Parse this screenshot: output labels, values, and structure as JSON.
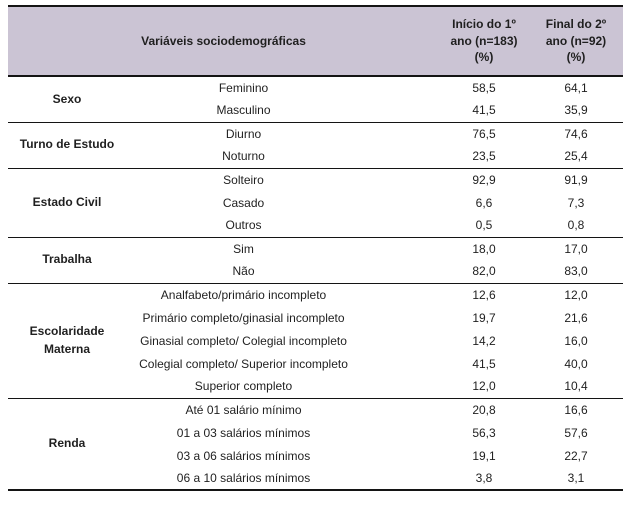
{
  "colors": {
    "header-bg": "#cbc4d4",
    "border": "#141414",
    "text": "#1f1f1f"
  },
  "table": {
    "header": {
      "variables": "Variáveis sociodemográficas",
      "t1": "Início do 1º ano (n=183) (%)",
      "t2": "Final do 2º ano (n=92) (%)"
    },
    "sections": [
      {
        "category": "Sexo",
        "rows": [
          {
            "label": "Feminino",
            "v1": "58,5",
            "v2": "64,1"
          },
          {
            "label": "Masculino",
            "v1": "41,5",
            "v2": "35,9"
          }
        ]
      },
      {
        "category": "Turno de Estudo",
        "rows": [
          {
            "label": "Diurno",
            "v1": "76,5",
            "v2": "74,6"
          },
          {
            "label": "Noturno",
            "v1": "23,5",
            "v2": "25,4"
          }
        ]
      },
      {
        "category": "Estado Civil",
        "rows": [
          {
            "label": "Solteiro",
            "v1": "92,9",
            "v2": "91,9"
          },
          {
            "label": "Casado",
            "v1": "6,6",
            "v2": "7,3"
          },
          {
            "label": "Outros",
            "v1": "0,5",
            "v2": "0,8"
          }
        ]
      },
      {
        "category": "Trabalha",
        "rows": [
          {
            "label": "Sim",
            "v1": "18,0",
            "v2": "17,0"
          },
          {
            "label": "Não",
            "v1": "82,0",
            "v2": "83,0"
          }
        ]
      },
      {
        "category": "Escolaridade Materna",
        "rows": [
          {
            "label": "Analfabeto/primário incompleto",
            "v1": "12,6",
            "v2": "12,0"
          },
          {
            "label": "Primário completo/ginasial incompleto",
            "v1": "19,7",
            "v2": "21,6"
          },
          {
            "label": "Ginasial completo/ Colegial incompleto",
            "v1": "14,2",
            "v2": "16,0"
          },
          {
            "label": "Colegial completo/ Superior incompleto",
            "v1": "41,5",
            "v2": "40,0"
          },
          {
            "label": "Superior completo",
            "v1": "12,0",
            "v2": "10,4"
          }
        ]
      },
      {
        "category": "Renda",
        "rows": [
          {
            "label": "Até 01 salário mínimo",
            "v1": "20,8",
            "v2": "16,6"
          },
          {
            "label": "01 a 03 salários mínimos",
            "v1": "56,3",
            "v2": "57,6"
          },
          {
            "label": "03 a 06 salários mínimos",
            "v1": "19,1",
            "v2": "22,7"
          },
          {
            "label": "06 a 10 salários mínimos",
            "v1": "3,8",
            "v2": "3,1"
          }
        ]
      }
    ]
  }
}
